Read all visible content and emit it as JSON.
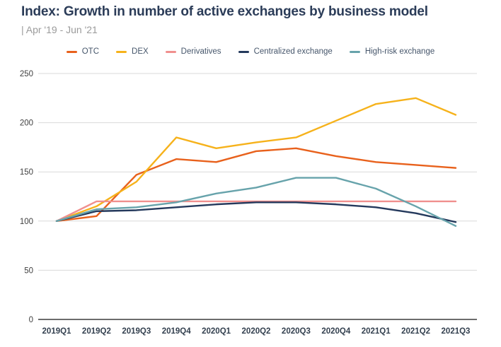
{
  "header": {
    "title": "Index: Growth in number of active exchanges by business model",
    "subtitle": "| Apr '19 - Jun '21"
  },
  "chart_data": {
    "type": "line",
    "title": "Index: Growth in number of active exchanges by business model",
    "subtitle": "| Apr '19 - Jun '21",
    "categories": [
      "2019Q1",
      "2019Q2",
      "2019Q3",
      "2019Q4",
      "2020Q1",
      "2020Q2",
      "2020Q3",
      "2020Q4",
      "2021Q1",
      "2021Q2",
      "2021Q3"
    ],
    "series": [
      {
        "name": "OTC",
        "color": "#e8611c",
        "values": [
          100,
          105,
          147,
          163,
          160,
          171,
          174,
          166,
          160,
          157,
          154
        ]
      },
      {
        "name": "DEX",
        "color": "#f6b21b",
        "values": [
          100,
          115,
          140,
          185,
          174,
          180,
          185,
          202,
          219,
          225,
          208
        ]
      },
      {
        "name": "Derivatives",
        "color": "#f0908e",
        "values": [
          100,
          120,
          120,
          120,
          120,
          120,
          120,
          120,
          120,
          120,
          120
        ]
      },
      {
        "name": "Centralized exchange",
        "color": "#24395c",
        "values": [
          100,
          110,
          111,
          114,
          117,
          119,
          119,
          117,
          114,
          108,
          99
        ]
      },
      {
        "name": "High-risk exchange",
        "color": "#67a3ab",
        "values": [
          100,
          112,
          114,
          119,
          128,
          134,
          144,
          144,
          133,
          115,
          95
        ]
      }
    ],
    "xlabel": "",
    "ylabel": "",
    "ylim": [
      0,
      250
    ],
    "yticks": [
      0,
      50,
      100,
      150,
      200,
      250
    ],
    "grid": true,
    "legend_position": "top",
    "colors": {
      "grid_line": "#d9d9d9",
      "zero_axis": "#3c3c3c",
      "tick_label": "#3f3f3f",
      "title_text": "#2b3c58",
      "subtitle_text": "#9b9b9b",
      "legend_text": "#46566b"
    }
  }
}
